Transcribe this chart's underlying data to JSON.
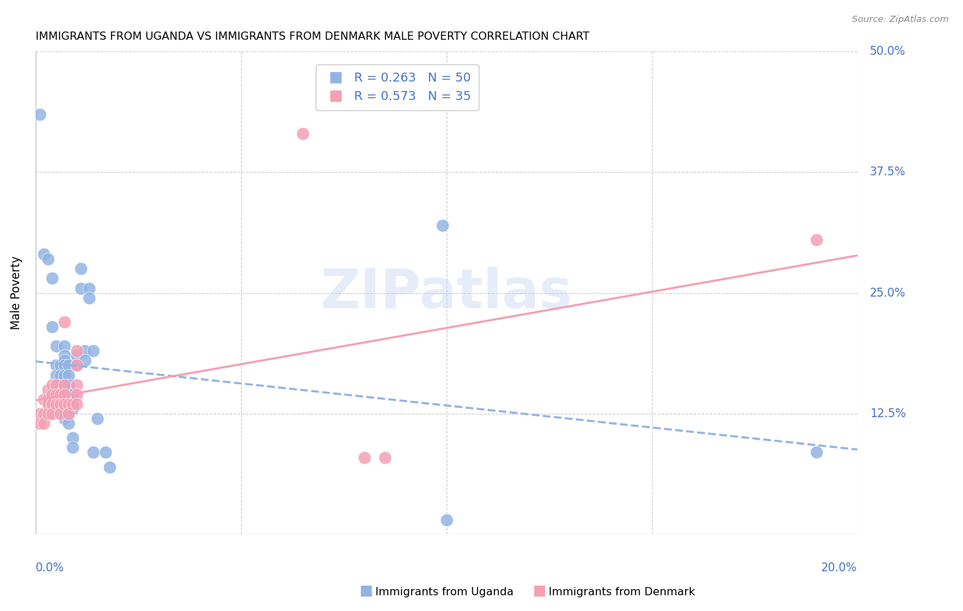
{
  "title": "IMMIGRANTS FROM UGANDA VS IMMIGRANTS FROM DENMARK MALE POVERTY CORRELATION CHART",
  "source": "Source: ZipAtlas.com",
  "ylabel_label": "Male Poverty",
  "xlim": [
    0.0,
    0.2
  ],
  "ylim": [
    0.0,
    0.5
  ],
  "xticks": [
    0.0,
    0.05,
    0.1,
    0.15,
    0.2
  ],
  "yticks": [
    0.0,
    0.125,
    0.25,
    0.375,
    0.5
  ],
  "ytick_labels": [
    "",
    "12.5%",
    "25.0%",
    "37.5%",
    "50.0%"
  ],
  "uganda_color": "#92b4e3",
  "denmark_color": "#f4a0b5",
  "uganda_R": 0.263,
  "uganda_N": 50,
  "denmark_R": 0.573,
  "denmark_N": 35,
  "watermark": "ZIPatlas",
  "background_color": "#ffffff",
  "grid_color": "#cccccc",
  "tick_color": "#4472c4",
  "uganda_points": [
    [
      0.001,
      0.435
    ],
    [
      0.002,
      0.29
    ],
    [
      0.003,
      0.285
    ],
    [
      0.004,
      0.265
    ],
    [
      0.004,
      0.215
    ],
    [
      0.005,
      0.195
    ],
    [
      0.005,
      0.175
    ],
    [
      0.005,
      0.165
    ],
    [
      0.006,
      0.175
    ],
    [
      0.006,
      0.165
    ],
    [
      0.006,
      0.155
    ],
    [
      0.006,
      0.145
    ],
    [
      0.007,
      0.195
    ],
    [
      0.007,
      0.185
    ],
    [
      0.007,
      0.18
    ],
    [
      0.007,
      0.175
    ],
    [
      0.007,
      0.165
    ],
    [
      0.007,
      0.155
    ],
    [
      0.007,
      0.15
    ],
    [
      0.007,
      0.145
    ],
    [
      0.007,
      0.13
    ],
    [
      0.007,
      0.12
    ],
    [
      0.008,
      0.175
    ],
    [
      0.008,
      0.165
    ],
    [
      0.008,
      0.155
    ],
    [
      0.008,
      0.14
    ],
    [
      0.008,
      0.13
    ],
    [
      0.008,
      0.125
    ],
    [
      0.008,
      0.115
    ],
    [
      0.009,
      0.145
    ],
    [
      0.009,
      0.135
    ],
    [
      0.009,
      0.13
    ],
    [
      0.009,
      0.1
    ],
    [
      0.009,
      0.09
    ],
    [
      0.01,
      0.185
    ],
    [
      0.01,
      0.175
    ],
    [
      0.011,
      0.275
    ],
    [
      0.011,
      0.255
    ],
    [
      0.012,
      0.19
    ],
    [
      0.012,
      0.18
    ],
    [
      0.013,
      0.255
    ],
    [
      0.013,
      0.245
    ],
    [
      0.014,
      0.19
    ],
    [
      0.014,
      0.085
    ],
    [
      0.015,
      0.12
    ],
    [
      0.017,
      0.085
    ],
    [
      0.018,
      0.07
    ],
    [
      0.099,
      0.32
    ],
    [
      0.19,
      0.085
    ],
    [
      0.1,
      0.015
    ]
  ],
  "denmark_points": [
    [
      0.001,
      0.125
    ],
    [
      0.001,
      0.115
    ],
    [
      0.002,
      0.14
    ],
    [
      0.002,
      0.125
    ],
    [
      0.002,
      0.115
    ],
    [
      0.003,
      0.15
    ],
    [
      0.003,
      0.14
    ],
    [
      0.003,
      0.135
    ],
    [
      0.003,
      0.125
    ],
    [
      0.004,
      0.155
    ],
    [
      0.004,
      0.145
    ],
    [
      0.004,
      0.135
    ],
    [
      0.004,
      0.125
    ],
    [
      0.005,
      0.155
    ],
    [
      0.005,
      0.145
    ],
    [
      0.005,
      0.135
    ],
    [
      0.006,
      0.145
    ],
    [
      0.006,
      0.135
    ],
    [
      0.006,
      0.125
    ],
    [
      0.007,
      0.22
    ],
    [
      0.007,
      0.155
    ],
    [
      0.007,
      0.145
    ],
    [
      0.007,
      0.135
    ],
    [
      0.008,
      0.135
    ],
    [
      0.008,
      0.125
    ],
    [
      0.009,
      0.135
    ],
    [
      0.01,
      0.19
    ],
    [
      0.01,
      0.175
    ],
    [
      0.01,
      0.155
    ],
    [
      0.01,
      0.145
    ],
    [
      0.01,
      0.135
    ],
    [
      0.065,
      0.415
    ],
    [
      0.08,
      0.08
    ],
    [
      0.085,
      0.08
    ],
    [
      0.19,
      0.305
    ]
  ]
}
